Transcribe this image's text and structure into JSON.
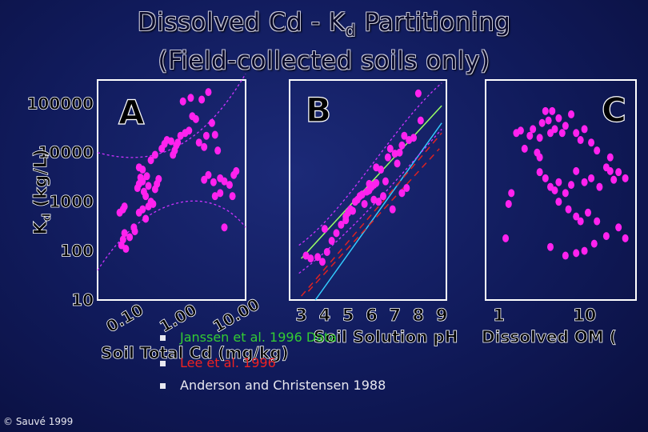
{
  "title_line1": "Dissolved Cd - K",
  "title_sub": "d",
  "title_line1_end": " Partitioning",
  "title_line2": "(Field-collected soils only)",
  "chart_data": [
    {
      "panel": "A",
      "type": "scatter",
      "xlabel": "Soil Total Cd (mg/kg)",
      "ylabel": "Kd (kg/L)",
      "xscale": "log",
      "yscale": "log",
      "xlim": [
        0.05,
        30
      ],
      "ylim": [
        10,
        300000
      ],
      "xticks": [
        "0.10",
        "1.00",
        "10.00"
      ],
      "yticks": [
        "100000",
        "10000",
        "1000",
        "100",
        "10"
      ],
      "points": [
        [
          0.14,
          130
        ],
        [
          0.15,
          170
        ],
        [
          0.16,
          230
        ],
        [
          0.17,
          110
        ],
        [
          0.13,
          600
        ],
        [
          0.15,
          700
        ],
        [
          0.16,
          800
        ],
        [
          0.2,
          190
        ],
        [
          0.24,
          300
        ],
        [
          0.28,
          1900
        ],
        [
          0.3,
          2300
        ],
        [
          0.32,
          3100
        ],
        [
          0.35,
          2600
        ],
        [
          0.37,
          1600
        ],
        [
          0.4,
          1300
        ],
        [
          0.42,
          3300
        ],
        [
          0.45,
          2100
        ],
        [
          0.3,
          600
        ],
        [
          0.35,
          700
        ],
        [
          0.45,
          800
        ],
        [
          0.5,
          1000
        ],
        [
          0.55,
          900
        ],
        [
          0.6,
          1800
        ],
        [
          0.65,
          2300
        ],
        [
          0.7,
          2900
        ],
        [
          0.35,
          4500
        ],
        [
          0.3,
          5000
        ],
        [
          0.5,
          7000
        ],
        [
          0.6,
          9000
        ],
        [
          0.8,
          12000
        ],
        [
          0.9,
          15000
        ],
        [
          1.0,
          18000
        ],
        [
          1.2,
          17000
        ],
        [
          1.3,
          9000
        ],
        [
          1.4,
          11000
        ],
        [
          1.5,
          14000
        ],
        [
          1.6,
          16000
        ],
        [
          1.8,
          22000
        ],
        [
          2.2,
          25000
        ],
        [
          2.6,
          28000
        ],
        [
          2.0,
          110000
        ],
        [
          2.8,
          130000
        ],
        [
          4.5,
          120000
        ],
        [
          6.0,
          170000
        ],
        [
          3.0,
          55000
        ],
        [
          3.5,
          48000
        ],
        [
          4.0,
          16000
        ],
        [
          5.0,
          13000
        ],
        [
          5.5,
          22000
        ],
        [
          7.0,
          40000
        ],
        [
          8.0,
          23000
        ],
        [
          9.0,
          11000
        ],
        [
          10.0,
          3000
        ],
        [
          12.0,
          2600
        ],
        [
          15.0,
          2200
        ],
        [
          18.0,
          3500
        ],
        [
          20.0,
          4200
        ],
        [
          6.0,
          3500
        ],
        [
          5.0,
          2800
        ],
        [
          7.5,
          2500
        ],
        [
          10.0,
          1500
        ],
        [
          17.0,
          1300
        ],
        [
          12.0,
          300
        ],
        [
          8.0,
          1300
        ],
        [
          0.25,
          250
        ],
        [
          0.4,
          450
        ]
      ]
    },
    {
      "panel": "B",
      "type": "scatter",
      "xlabel": "Soil Solution pH",
      "xscale": "linear",
      "xlim": [
        2.5,
        9.2
      ],
      "ylim": [
        10,
        300000
      ],
      "xticks": [
        "3",
        "4",
        "5",
        "6",
        "7",
        "8",
        "9"
      ],
      "points": [
        [
          3.2,
          80
        ],
        [
          3.4,
          70
        ],
        [
          3.7,
          75
        ],
        [
          3.9,
          60
        ],
        [
          4.1,
          95
        ],
        [
          4.3,
          160
        ],
        [
          4.5,
          230
        ],
        [
          4.7,
          340
        ],
        [
          4.9,
          500
        ],
        [
          5.0,
          600
        ],
        [
          5.1,
          700
        ],
        [
          5.3,
          1000
        ],
        [
          5.4,
          1100
        ],
        [
          5.5,
          1300
        ],
        [
          5.6,
          1400
        ],
        [
          5.8,
          1600
        ],
        [
          5.9,
          1700
        ],
        [
          6.0,
          2000
        ],
        [
          6.1,
          2200
        ],
        [
          6.2,
          2400
        ],
        [
          6.4,
          4500
        ],
        [
          6.5,
          1300
        ],
        [
          6.3,
          1000
        ],
        [
          6.1,
          1100
        ],
        [
          5.7,
          900
        ],
        [
          5.2,
          650
        ],
        [
          4.9,
          420
        ],
        [
          6.7,
          8000
        ],
        [
          6.8,
          12000
        ],
        [
          7.0,
          9500
        ],
        [
          7.2,
          10000
        ],
        [
          7.3,
          14000
        ],
        [
          7.4,
          22000
        ],
        [
          7.6,
          18000
        ],
        [
          7.8,
          20000
        ],
        [
          8.0,
          160000
        ],
        [
          8.1,
          45000
        ],
        [
          7.5,
          1900
        ],
        [
          7.3,
          1500
        ],
        [
          6.9,
          700
        ],
        [
          6.6,
          2600
        ],
        [
          7.1,
          6000
        ],
        [
          5.9,
          2300
        ],
        [
          6.2,
          5000
        ],
        [
          4.0,
          280
        ]
      ]
    },
    {
      "panel": "C",
      "type": "scatter",
      "xlabel": "Dissolved OM (",
      "xscale": "log",
      "xlim": [
        0.7,
        40
      ],
      "ylim": [
        10,
        300000
      ],
      "xticks": [
        "1",
        "10"
      ],
      "points": [
        [
          1.2,
          180
        ],
        [
          1.3,
          900
        ],
        [
          1.4,
          1500
        ],
        [
          1.6,
          25000
        ],
        [
          1.8,
          28000
        ],
        [
          2.0,
          12000
        ],
        [
          2.3,
          22000
        ],
        [
          2.5,
          30000
        ],
        [
          2.8,
          10000
        ],
        [
          3.0,
          20000
        ],
        [
          3.2,
          40000
        ],
        [
          3.5,
          70000
        ],
        [
          3.8,
          45000
        ],
        [
          4.0,
          25000
        ],
        [
          4.2,
          70000
        ],
        [
          4.5,
          30000
        ],
        [
          5.0,
          50000
        ],
        [
          5.5,
          25000
        ],
        [
          6.0,
          35000
        ],
        [
          7.0,
          60000
        ],
        [
          8.0,
          25000
        ],
        [
          9.0,
          18000
        ],
        [
          10.0,
          30000
        ],
        [
          12.0,
          16000
        ],
        [
          14.0,
          11000
        ],
        [
          18.0,
          5000
        ],
        [
          20.0,
          4200
        ],
        [
          25.0,
          4000
        ],
        [
          30.0,
          3000
        ],
        [
          22.0,
          2800
        ],
        [
          3.0,
          4000
        ],
        [
          3.5,
          3000
        ],
        [
          4.0,
          2000
        ],
        [
          4.5,
          1700
        ],
        [
          5.0,
          2500
        ],
        [
          6.0,
          1500
        ],
        [
          7.0,
          2200
        ],
        [
          8.0,
          4200
        ],
        [
          10.0,
          2500
        ],
        [
          12.0,
          3000
        ],
        [
          15.0,
          2000
        ],
        [
          5.0,
          1000
        ],
        [
          6.5,
          700
        ],
        [
          8.0,
          500
        ],
        [
          9.0,
          400
        ],
        [
          11.0,
          600
        ],
        [
          14.0,
          400
        ],
        [
          18.0,
          200
        ],
        [
          25.0,
          300
        ],
        [
          30.0,
          180
        ],
        [
          4.0,
          120
        ],
        [
          6.0,
          80
        ],
        [
          8.0,
          90
        ],
        [
          10.0,
          100
        ],
        [
          13.0,
          140
        ],
        [
          3.0,
          8000
        ],
        [
          20.0,
          8000
        ]
      ]
    }
  ],
  "panel_labels": [
    "A",
    "B",
    "C"
  ],
  "yaxis_title": "Kd (kg/L)",
  "yaxis_title_base": "K",
  "yaxis_title_sub": "d",
  "yaxis_title_end": " (kg/L)",
  "xaxis_title_a": "Soil Total Cd (mg/kg)",
  "xaxis_title_b": "Soil Solution pH",
  "xaxis_title_c": "Dissolved OM (",
  "legend": [
    {
      "label": "Janssen et al. 1996 Data",
      "color": "#33cc33"
    },
    {
      "label": "Lee et al. 1996",
      "color": "#ee2222"
    },
    {
      "label": "Anderson and Christensen 1988",
      "color": "#e8e8f0"
    }
  ],
  "credit": "© Sauvé 1999",
  "colors": {
    "points": "#ff22ee",
    "curves": "#cc33ff",
    "frame": "#ffffff",
    "green_line": "#99ff66",
    "cyan_line": "#33ccff",
    "red_line": "#dd2222"
  }
}
